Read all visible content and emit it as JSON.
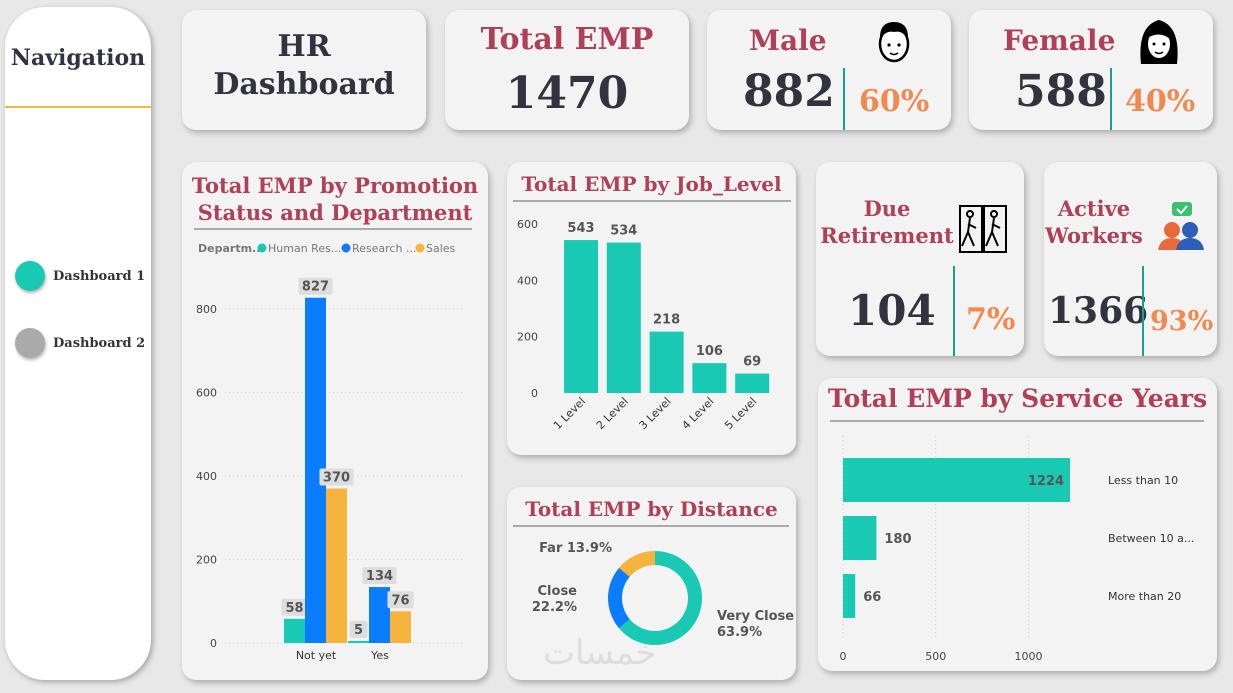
{
  "nav": {
    "title": "Navigation",
    "items": [
      {
        "label": "Dashboard 1",
        "color": "#19c9b3"
      },
      {
        "label": "Dashboard 2",
        "color": "#aaaaaa"
      }
    ]
  },
  "header": {
    "title1": "HR",
    "title2": "Dashboard"
  },
  "kpi": {
    "total": {
      "label": "Total EMP",
      "value": "1470"
    },
    "male": {
      "label": "Male",
      "value": "882",
      "pct": "60%"
    },
    "female": {
      "label": "Female",
      "value": "588",
      "pct": "40%"
    },
    "retire": {
      "label1": "Due",
      "label2": "Retirement",
      "value": "104",
      "pct": "7%"
    },
    "active": {
      "label1": "Active",
      "label2": "Workers",
      "value": "1366",
      "pct": "93%"
    }
  },
  "watermark": "خمسات",
  "chart_data": [
    {
      "id": "promotion",
      "type": "bar",
      "title": "Total EMP by Promotion Status and Department",
      "title1": "Total EMP by Promotion",
      "title2": "Status and Department",
      "legend_title": "Departm...",
      "categories": [
        "Not yet",
        "Yes"
      ],
      "series": [
        {
          "name": "Human Res...",
          "color": "#19c9b3",
          "values": [
            58,
            5
          ]
        },
        {
          "name": "Research ...",
          "color": "#0a7cff",
          "values": [
            827,
            134
          ]
        },
        {
          "name": "Sales",
          "color": "#f6b33d",
          "values": [
            370,
            76
          ]
        }
      ],
      "yticks": [
        0,
        200,
        400,
        600,
        800
      ],
      "ylim": [
        0,
        800
      ]
    },
    {
      "id": "joblevel",
      "type": "bar",
      "title": "Total EMP by Job_Level",
      "categories": [
        "1 Level",
        "2 Level",
        "3 Level",
        "4 Level",
        "5 Level"
      ],
      "values": [
        543,
        534,
        218,
        106,
        69
      ],
      "yticks": [
        0,
        200,
        400,
        600
      ],
      "ylim": [
        0,
        600
      ],
      "color": "#19c9b3"
    },
    {
      "id": "distance",
      "type": "pie",
      "title": "Total EMP by Distance",
      "slices": [
        {
          "label": "Very Close",
          "pct": "63.9%",
          "value": 63.9,
          "color": "#19c9b3"
        },
        {
          "label": "Close",
          "pct": "22.2%",
          "value": 22.2,
          "color": "#0a7cff"
        },
        {
          "label": "Far",
          "pct": "13.9%",
          "value": 13.9,
          "color": "#f6b33d"
        }
      ]
    },
    {
      "id": "service",
      "type": "bar",
      "orientation": "horizontal",
      "title": "Total EMP by Service Years",
      "categories": [
        "Less than 10",
        "Between 10 a...",
        "More than 20"
      ],
      "values": [
        1224,
        180,
        66
      ],
      "xticks": [
        0,
        500,
        1000
      ],
      "xlim": [
        0,
        1224
      ],
      "color": "#19c9b3"
    }
  ]
}
